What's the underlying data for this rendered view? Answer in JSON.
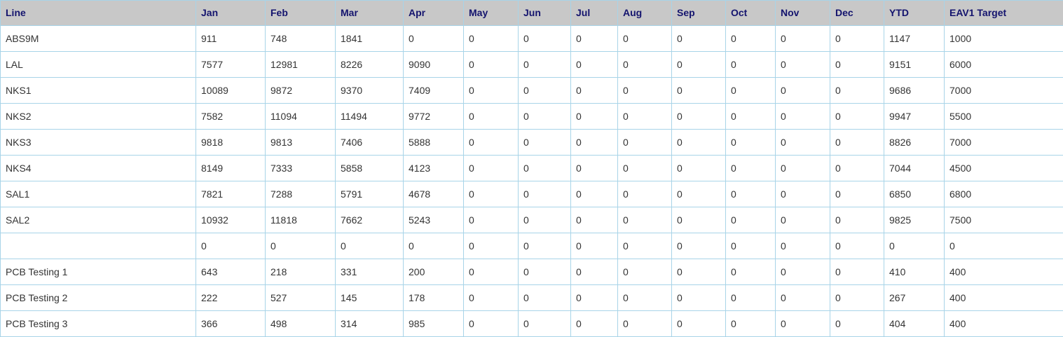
{
  "colors": {
    "header_bg": "#c8c8c8",
    "header_text": "#14146e",
    "border": "#a8d4e8",
    "cell_text": "#333333"
  },
  "table": {
    "columns": [
      "Line",
      "Jan",
      "Feb",
      "Mar",
      "Apr",
      "May",
      "Jun",
      "Jul",
      "Aug",
      "Sep",
      "Oct",
      "Nov",
      "Dec",
      "YTD",
      "EAV1 Target"
    ],
    "rows": [
      [
        "ABS9M",
        "911",
        "748",
        "1841",
        "0",
        "0",
        "0",
        "0",
        "0",
        "0",
        "0",
        "0",
        "0",
        "1147",
        "1000"
      ],
      [
        "LAL",
        "7577",
        "12981",
        "8226",
        "9090",
        "0",
        "0",
        "0",
        "0",
        "0",
        "0",
        "0",
        "0",
        "9151",
        "6000"
      ],
      [
        "NKS1",
        "10089",
        "9872",
        "9370",
        "7409",
        "0",
        "0",
        "0",
        "0",
        "0",
        "0",
        "0",
        "0",
        "9686",
        "7000"
      ],
      [
        "NKS2",
        "7582",
        "11094",
        "11494",
        "9772",
        "0",
        "0",
        "0",
        "0",
        "0",
        "0",
        "0",
        "0",
        "9947",
        "5500"
      ],
      [
        "NKS3",
        "9818",
        "9813",
        "7406",
        "5888",
        "0",
        "0",
        "0",
        "0",
        "0",
        "0",
        "0",
        "0",
        "8826",
        "7000"
      ],
      [
        "NKS4",
        "8149",
        "7333",
        "5858",
        "4123",
        "0",
        "0",
        "0",
        "0",
        "0",
        "0",
        "0",
        "0",
        "7044",
        "4500"
      ],
      [
        "SAL1",
        "7821",
        "7288",
        "5791",
        "4678",
        "0",
        "0",
        "0",
        "0",
        "0",
        "0",
        "0",
        "0",
        "6850",
        "6800"
      ],
      [
        "SAL2",
        "10932",
        "11818",
        "7662",
        "5243",
        "0",
        "0",
        "0",
        "0",
        "0",
        "0",
        "0",
        "0",
        "9825",
        "7500"
      ],
      [
        "",
        "0",
        "0",
        "0",
        "0",
        "0",
        "0",
        "0",
        "0",
        "0",
        "0",
        "0",
        "0",
        "0",
        "0"
      ],
      [
        "PCB Testing 1",
        "643",
        "218",
        "331",
        "200",
        "0",
        "0",
        "0",
        "0",
        "0",
        "0",
        "0",
        "0",
        "410",
        "400"
      ],
      [
        "PCB Testing 2",
        "222",
        "527",
        "145",
        "178",
        "0",
        "0",
        "0",
        "0",
        "0",
        "0",
        "0",
        "0",
        "267",
        "400"
      ],
      [
        "PCB Testing 3",
        "366",
        "498",
        "314",
        "985",
        "0",
        "0",
        "0",
        "0",
        "0",
        "0",
        "0",
        "0",
        "404",
        "400"
      ]
    ]
  }
}
